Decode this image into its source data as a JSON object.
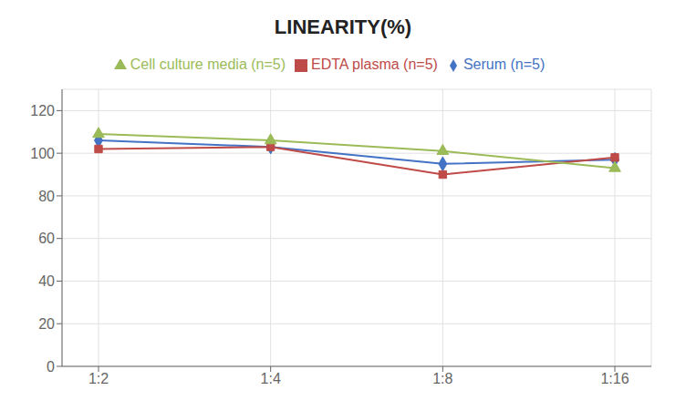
{
  "chart_data": {
    "type": "line",
    "title": "LINEARITY(%)",
    "categories": [
      "1:2",
      "1:4",
      "1:8",
      "1:16"
    ],
    "series": [
      {
        "name": "Serum (n=5)",
        "color": "#4472C4",
        "marker": "diamond",
        "values": [
          106,
          103,
          95,
          97
        ]
      },
      {
        "name": "EDTA plasma (n=5)",
        "color": "#BE4B48",
        "marker": "square",
        "values": [
          102,
          103,
          90,
          98
        ]
      },
      {
        "name": "Cell culture media (n=5)",
        "color": "#9BBB59",
        "marker": "triangle",
        "values": [
          109,
          106,
          101,
          93
        ]
      }
    ],
    "ylim": [
      0,
      130
    ],
    "yticks": [
      0,
      20,
      40,
      60,
      80,
      100,
      120
    ],
    "grid": true,
    "legend": "top"
  }
}
